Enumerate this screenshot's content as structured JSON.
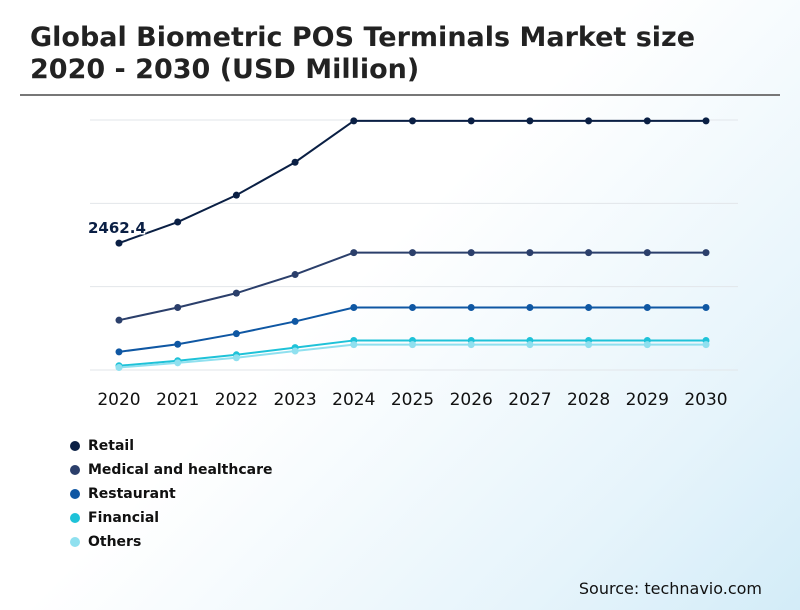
{
  "title": "Global Biometric POS Terminals Market size 2020 - 2030 (USD Million)",
  "source": "Source: technavio.com",
  "chart_data": {
    "type": "line",
    "x": [
      "2020",
      "2021",
      "2022",
      "2023",
      "2024",
      "2025",
      "2026",
      "2027",
      "2028",
      "2029",
      "2030"
    ],
    "series": [
      {
        "name": "Retail",
        "color": "#0a1f44",
        "values": [
          2462.4,
          2712,
          3030,
          3420,
          3910,
          3910,
          3910,
          3910,
          3910,
          3910,
          3910
        ]
      },
      {
        "name": "Medical and healthcare",
        "color": "#2b3f6b",
        "values": [
          1550,
          1700,
          1870,
          2090,
          2350,
          2350,
          2350,
          2350,
          2350,
          2350,
          2350
        ]
      },
      {
        "name": "Restaurant",
        "color": "#0f57a3",
        "values": [
          1175,
          1265,
          1390,
          1535,
          1700,
          1700,
          1700,
          1700,
          1700,
          1700,
          1700
        ]
      },
      {
        "name": "Financial",
        "color": "#1ec2d8",
        "values": [
          1010,
          1070,
          1140,
          1225,
          1310,
          1310,
          1310,
          1310,
          1310,
          1310,
          1310
        ]
      },
      {
        "name": "Others",
        "color": "#8fe0ef",
        "values": [
          990,
          1045,
          1105,
          1185,
          1260,
          1260,
          1260,
          1260,
          1260,
          1260,
          1260
        ]
      }
    ],
    "data_labels": [
      {
        "series": 0,
        "index": 0,
        "text": "2462.4"
      }
    ],
    "ylim": [
      960,
      3920
    ],
    "gridlines": [
      960,
      1947,
      2933,
      3920
    ],
    "grid": true,
    "legend": "bottom-left"
  }
}
